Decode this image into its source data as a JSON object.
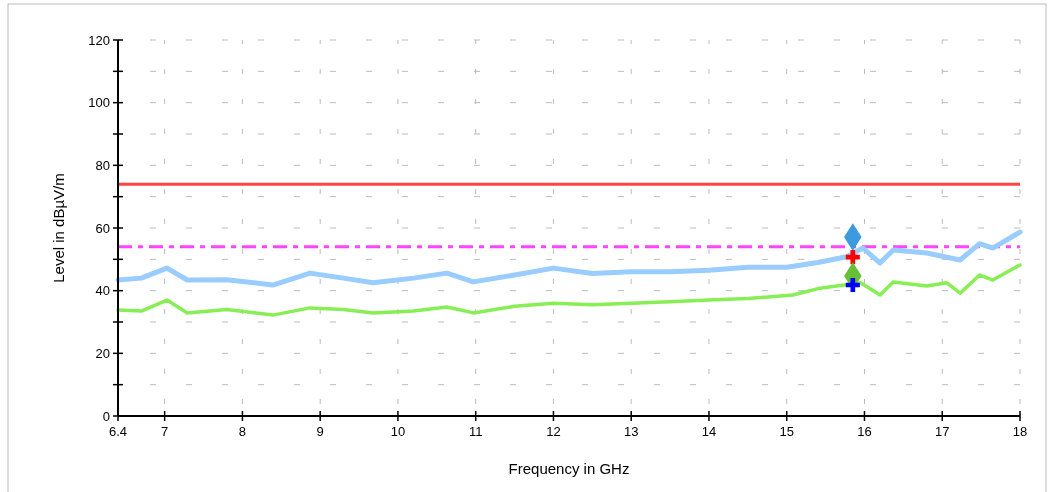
{
  "chart_data": {
    "type": "line",
    "xlabel": "Frequency in GHz",
    "ylabel": "Level in dBµV/m",
    "xlim": [
      6.4,
      18
    ],
    "xticks": [
      6.4,
      7,
      8,
      9,
      10,
      11,
      12,
      13,
      14,
      15,
      16,
      17,
      18
    ],
    "ylim": [
      0,
      120
    ],
    "yticks": [
      0,
      {
        "value": 10,
        "label": null
      },
      20,
      {
        "value": 30,
        "label": null
      },
      40,
      {
        "value": 50,
        "label": null
      },
      60,
      {
        "value": 70,
        "label": null
      },
      80,
      {
        "value": 90,
        "label": null
      },
      100,
      {
        "value": 110,
        "label": null
      },
      120
    ],
    "grid": true,
    "line_style": "solid",
    "marker": "none",
    "series": [
      {
        "color": "#99ccff",
        "x": [
          6.4,
          6.7,
          7.03,
          7.29,
          7.8,
          8.39,
          8.87,
          9.3,
          9.68,
          10.2,
          10.63,
          10.97,
          11.5,
          12.0,
          12.5,
          13.0,
          13.5,
          14.0,
          14.5,
          15.0,
          15.4,
          15.77,
          15.98,
          16.2,
          16.37,
          16.8,
          17.23,
          17.48,
          17.65,
          18.0
        ],
        "values": [
          43.4,
          44,
          47.2,
          43.4,
          43.5,
          41.8,
          45.6,
          44,
          42.5,
          44,
          45.6,
          42.8,
          45,
          47.2,
          45.5,
          46,
          46,
          46.5,
          47.5,
          47.5,
          49,
          50.8,
          53.6,
          48.8,
          53,
          52,
          49.8,
          55,
          53.6,
          58.7
        ]
      },
      {
        "color": "#88ee55",
        "x": [
          6.4,
          6.7,
          7.03,
          7.29,
          7.8,
          8.39,
          8.87,
          9.3,
          9.68,
          10.2,
          10.63,
          10.97,
          11.5,
          12.0,
          12.5,
          13.0,
          13.5,
          14.0,
          14.5,
          15.08,
          15.43,
          15.95,
          16.2,
          16.37,
          16.8,
          17.06,
          17.23,
          17.48,
          17.65,
          18.0
        ],
        "values": [
          33.8,
          33.5,
          37,
          32.9,
          34,
          32.2,
          34.5,
          34,
          32.9,
          33.5,
          34.8,
          32.9,
          35,
          36,
          35.5,
          36,
          36.5,
          37,
          37.5,
          38.6,
          40.8,
          42.5,
          38.6,
          42.8,
          41.5,
          42.5,
          39.2,
          45,
          43.4,
          48.2
        ]
      },
      {
        "type": "scatter",
        "marker": "diamond",
        "color": "#3d9ade",
        "x": [
          15.85
        ],
        "values": [
          57.1
        ]
      },
      {
        "type": "scatter",
        "marker": "cross",
        "color": "#ff0000",
        "x": [
          15.85
        ],
        "values": [
          50.7
        ]
      },
      {
        "type": "scatter",
        "marker": "diamond",
        "color": "#66c033",
        "x": [
          15.85
        ],
        "values": [
          44.7
        ]
      },
      {
        "type": "scatter",
        "marker": "cross",
        "color": "#0000ff",
        "x": [
          15.85
        ],
        "values": [
          41.8
        ]
      }
    ],
    "ref_lines": [
      {
        "axis": "y",
        "value": 74,
        "color": "#ff4444",
        "line_style": "solid"
      },
      {
        "axis": "y",
        "value": 54,
        "color": "#ff44ff",
        "line_style": "dashed"
      }
    ]
  }
}
